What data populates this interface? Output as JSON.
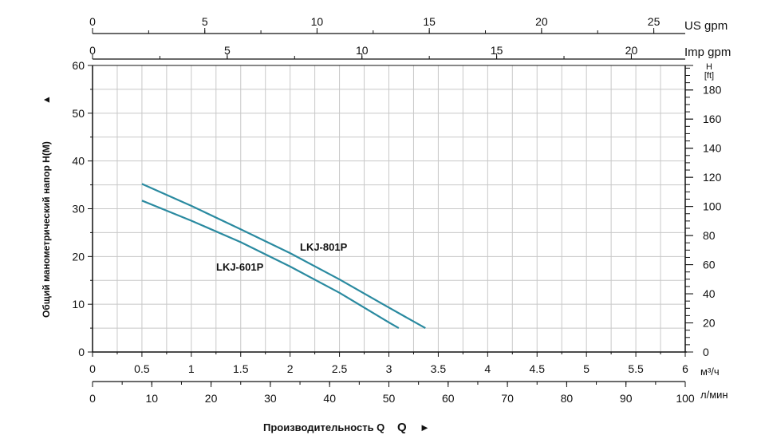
{
  "chart_data": {
    "type": "line",
    "title": "",
    "xlabel": "Производительность Q",
    "ylabel": "Общий манометрический напор H(M)",
    "xlim": [
      0,
      6
    ],
    "ylim": [
      0,
      60
    ],
    "grid": true,
    "x_unit": "м³/ч",
    "x_ticks": [
      "0",
      "0.5",
      "1",
      "1.5",
      "2",
      "2.5",
      "3",
      "3.5",
      "4",
      "4.5",
      "5",
      "5.5",
      "6"
    ],
    "y_ticks": [
      "0",
      "10",
      "20",
      "30",
      "40",
      "50",
      "60"
    ],
    "y_arrow": "▲",
    "x_arrow": "►",
    "secondary_axes": {
      "us_gpm": {
        "label": "US gpm",
        "max": 26.4,
        "ticks": [
          "0",
          "5",
          "10",
          "15",
          "20",
          "25"
        ]
      },
      "imp_gpm": {
        "label": "Imp gpm",
        "max": 22,
        "ticks": [
          "0",
          "5",
          "10",
          "15",
          "20"
        ]
      },
      "l_min": {
        "label": "л/мин",
        "max": 100,
        "ticks": [
          "0",
          "10",
          "20",
          "30",
          "40",
          "50",
          "60",
          "70",
          "80",
          "90",
          "100"
        ]
      },
      "ft": {
        "label": "H",
        "unit": "[ft]",
        "max": 196.85,
        "ticks": [
          "0",
          "20",
          "40",
          "60",
          "80",
          "100",
          "120",
          "140",
          "160",
          "180"
        ]
      }
    },
    "series": [
      {
        "name": "LKJ-801P",
        "color": "#2a8aa0",
        "x": [
          0.5,
          1.0,
          1.5,
          2.0,
          2.5,
          3.0,
          3.37
        ],
        "y": [
          35.2,
          30.6,
          25.7,
          20.7,
          15.2,
          9.3,
          5.0
        ]
      },
      {
        "name": "LKJ-601P",
        "color": "#2a8aa0",
        "x": [
          0.5,
          1.0,
          1.5,
          2.0,
          2.5,
          3.0,
          3.1
        ],
        "y": [
          31.7,
          27.5,
          23.0,
          17.9,
          12.4,
          6.2,
          5.0
        ]
      }
    ]
  }
}
